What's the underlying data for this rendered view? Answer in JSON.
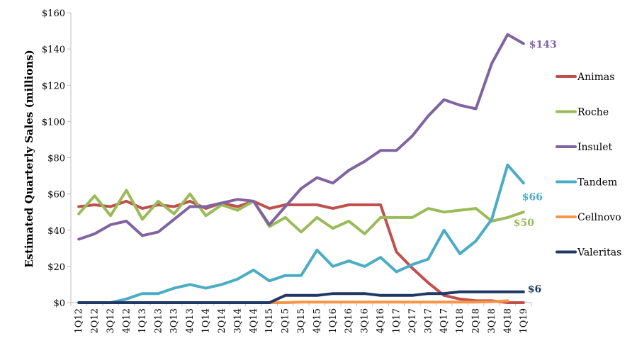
{
  "chart_data": {
    "type": "line",
    "title": "",
    "xlabel": "",
    "ylabel": "Estimated Quarterly Sales (millions)",
    "ylim": [
      0,
      160
    ],
    "yticks": [
      "$0",
      "$20",
      "$40",
      "$60",
      "$80",
      "$100",
      "$120",
      "$140",
      "$160"
    ],
    "ytick_values": [
      0,
      20,
      40,
      60,
      80,
      100,
      120,
      140,
      160
    ],
    "grid": false,
    "legend_position": "right",
    "categories": [
      "1Q12",
      "2Q12",
      "3Q12",
      "4Q12",
      "1Q13",
      "2Q13",
      "3Q13",
      "4Q13",
      "1Q14",
      "2Q14",
      "3Q14",
      "4Q14",
      "1Q15",
      "2Q15",
      "3Q15",
      "4Q15",
      "1Q16",
      "2Q16",
      "3Q16",
      "4Q16",
      "1Q17",
      "2Q17",
      "3Q17",
      "4Q17",
      "1Q18",
      "2Q18",
      "3Q18",
      "4Q18",
      "1Q19"
    ],
    "series": [
      {
        "name": "Animas",
        "color": "#c0504d",
        "values": [
          53,
          54,
          53,
          56,
          52,
          54,
          53,
          56,
          52,
          55,
          53,
          56,
          52,
          54,
          54,
          54,
          52,
          54,
          54,
          54,
          28,
          19,
          11,
          4,
          2,
          1,
          1,
          0,
          0
        ]
      },
      {
        "name": "Roche",
        "color": "#9bbb59",
        "values": [
          49,
          59,
          48,
          62,
          46,
          56,
          49,
          60,
          48,
          54,
          51,
          56,
          42,
          47,
          39,
          47,
          41,
          45,
          38,
          47,
          47,
          47,
          52,
          50,
          51,
          52,
          45,
          47,
          50
        ]
      },
      {
        "name": "Insulet",
        "color": "#8064a2",
        "values": [
          35,
          38,
          43,
          45,
          37,
          39,
          46,
          53,
          53,
          55,
          57,
          56,
          43,
          53,
          63,
          69,
          66,
          73,
          78,
          84,
          84,
          92,
          103,
          112,
          109,
          107,
          132,
          148,
          143
        ]
      },
      {
        "name": "Tandem",
        "color": "#4bacc6",
        "values": [
          0,
          0,
          0,
          2,
          5,
          5,
          8,
          10,
          8,
          10,
          13,
          18,
          12,
          15,
          15,
          29,
          20,
          23,
          20,
          25,
          17,
          21,
          24,
          40,
          27,
          34,
          46,
          76,
          66
        ]
      },
      {
        "name": "Cellnovo",
        "color": "#f79646",
        "values": [
          null,
          null,
          null,
          null,
          null,
          null,
          null,
          null,
          null,
          null,
          null,
          null,
          0,
          0,
          0.3,
          0.3,
          0.3,
          0.3,
          0.3,
          0.3,
          0.3,
          0.3,
          0.3,
          0.3,
          0.3,
          0.3,
          0.5,
          1,
          null
        ]
      },
      {
        "name": "Valeritas",
        "color": "#1f3864",
        "values": [
          0,
          0,
          0,
          0,
          0,
          0,
          0,
          0,
          0,
          0,
          0,
          0,
          0,
          4,
          4,
          4,
          5,
          5,
          5,
          4,
          4,
          4,
          5,
          5,
          6,
          6,
          6,
          6,
          6
        ]
      }
    ],
    "annotations": [
      {
        "text": "$143",
        "series": "Insulet",
        "color": "#8064a2"
      },
      {
        "text": "$66",
        "series": "Tandem",
        "color": "#4bacc6"
      },
      {
        "text": "$50",
        "series": "Roche",
        "color": "#9bbb59"
      },
      {
        "text": "$6",
        "series": "Valeritas",
        "color": "#1f3864"
      }
    ]
  }
}
